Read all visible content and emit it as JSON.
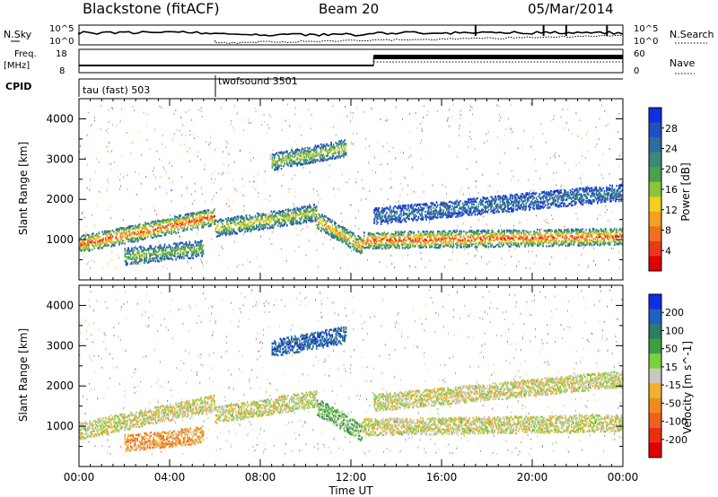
{
  "header": {
    "title": "Blackstone (fitACF)",
    "beam": "Beam 20",
    "date": "05/Mar/2014"
  },
  "top_panels": {
    "nsky_label": "N.Sky",
    "nsky_ticks": [
      "10^5",
      "10^0"
    ],
    "nsearch_label": "N.Search",
    "nsearch_ticks": [
      "10^5",
      "10^0"
    ],
    "freq_label_1": "Freq.",
    "freq_label_2": "[MHz]",
    "freq_ticks": [
      "18",
      "8"
    ],
    "nave_label": "Nave",
    "nave_ticks": [
      "60",
      "0"
    ],
    "cpid_label": "CPID",
    "cpid_segments": [
      {
        "name": "tau (fast) 503",
        "start_hour": 0,
        "end_hour": 6
      },
      {
        "name": "twofsound 3501",
        "start_hour": 6,
        "end_hour": 24
      }
    ]
  },
  "colors": {
    "power": [
      "#1030e0",
      "#2050c0",
      "#2f6aa0",
      "#3a8a78",
      "#48a050",
      "#8cc43a",
      "#f0d020",
      "#f5a020",
      "#f07020",
      "#e83a1a",
      "#e00000"
    ],
    "velocity": [
      "#1030e0",
      "#1f5fc0",
      "#2e7b6a",
      "#3aa040",
      "#7cd040",
      "#c8c8c0",
      "#f0b030",
      "#f08a20",
      "#f06020",
      "#e83010",
      "#e00000"
    ]
  },
  "chart_data": [
    {
      "type": "heatmap",
      "title": "Power",
      "xlabel": "",
      "ylabel": "Slant Range [km]",
      "x_tick_hours": [
        0,
        4,
        8,
        12,
        16,
        20,
        24
      ],
      "y_ticks": [
        "1000",
        "2000",
        "3000",
        "4000"
      ],
      "ylim": [
        0,
        4500
      ],
      "xlim": [
        0,
        24
      ],
      "colorbar": {
        "label": "Power [dB]",
        "ticks": [
          "4",
          "8",
          "12",
          "16",
          "20",
          "24",
          "28"
        ],
        "range": [
          0,
          32
        ]
      },
      "echo_regions": [
        {
          "h0": 0.0,
          "h1": 6.0,
          "r_start": 900,
          "r_end": 1600,
          "level": 0.9
        },
        {
          "h0": 6.0,
          "h1": 10.5,
          "r_start": 1300,
          "r_end": 1700,
          "level": 0.6
        },
        {
          "h0": 10.5,
          "h1": 12.5,
          "r_start": 1500,
          "r_end": 850,
          "level": 0.75
        },
        {
          "h0": 12.5,
          "h1": 24.0,
          "r_start": 1000,
          "r_end": 1100,
          "level": 0.9
        },
        {
          "h0": 8.5,
          "h1": 11.8,
          "r_start": 2950,
          "r_end": 3300,
          "level": 0.55
        },
        {
          "h0": 2.0,
          "h1": 5.5,
          "r_start": 600,
          "r_end": 800,
          "level": 0.5
        },
        {
          "h0": 13.0,
          "h1": 24.0,
          "r_start": 1600,
          "r_end": 2200,
          "level": 0.25
        }
      ]
    },
    {
      "type": "heatmap",
      "title": "Velocity",
      "xlabel": "Time UT",
      "ylabel": "Slant Range [km]",
      "x_tick_labels": [
        "00:00",
        "04:00",
        "08:00",
        "12:00",
        "16:00",
        "20:00",
        "00:00"
      ],
      "x_tick_hours": [
        0,
        4,
        8,
        12,
        16,
        20,
        24
      ],
      "y_ticks": [
        "1000",
        "2000",
        "3000",
        "4000"
      ],
      "ylim": [
        0,
        4500
      ],
      "xlim": [
        0,
        24
      ],
      "colorbar": {
        "label": "Velocity [m s^-1]",
        "ticks": [
          "200",
          "100",
          "50",
          "15",
          "-15",
          "-50",
          "-100",
          "-200"
        ],
        "range": [
          -250,
          250
        ]
      },
      "echo_regions": [
        {
          "h0": 0.0,
          "h1": 6.0,
          "r_start": 900,
          "r_end": 1600,
          "level": 0.0
        },
        {
          "h0": 6.0,
          "h1": 10.5,
          "r_start": 1300,
          "r_end": 1700,
          "level": 0.0
        },
        {
          "h0": 10.5,
          "h1": 12.5,
          "r_start": 1500,
          "r_end": 850,
          "level": 0.3
        },
        {
          "h0": 12.5,
          "h1": 24.0,
          "r_start": 1000,
          "r_end": 1100,
          "level": 0.0
        },
        {
          "h0": 8.5,
          "h1": 11.8,
          "r_start": 2950,
          "r_end": 3300,
          "level": 0.8
        },
        {
          "h0": 2.0,
          "h1": 5.5,
          "r_start": 600,
          "r_end": 800,
          "level": -0.3
        },
        {
          "h0": 13.0,
          "h1": 24.0,
          "r_start": 1600,
          "r_end": 2200,
          "level": 0.0
        }
      ]
    }
  ]
}
